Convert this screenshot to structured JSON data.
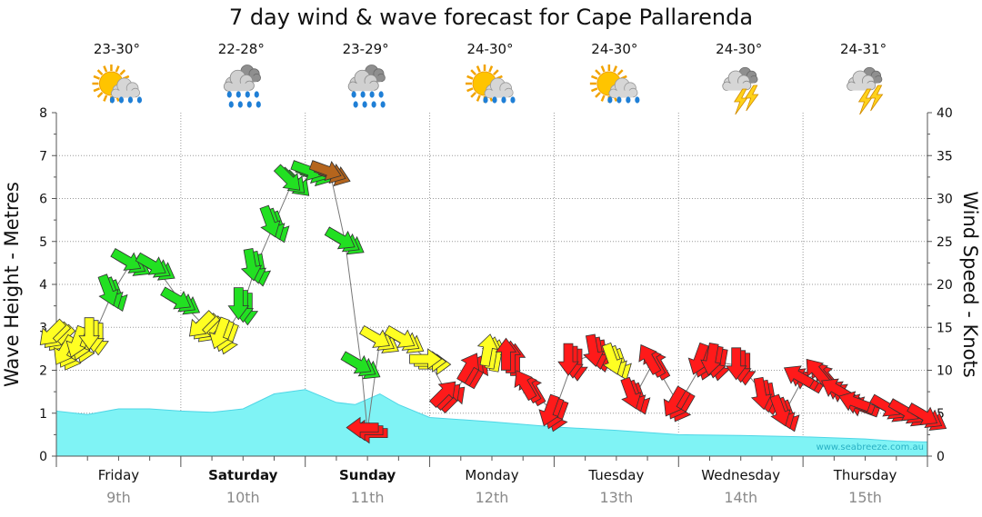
{
  "chart_data": {
    "type": "line",
    "title": "7 day wind & wave forecast for Cape Pallarenda",
    "ylabel": "Wave Height - Metres",
    "y2label": "Wind Speed - Knots",
    "ylim": [
      0,
      8
    ],
    "y2lim": [
      0,
      40
    ],
    "yticks": [
      "0",
      "1",
      "2",
      "3",
      "4",
      "5",
      "6",
      "7",
      "8"
    ],
    "y2ticks": [
      "0",
      "5",
      "10",
      "15",
      "20",
      "25",
      "30",
      "35",
      "40"
    ],
    "xlim": [
      0,
      7
    ],
    "days": [
      {
        "day": "Friday",
        "date": "9th",
        "bold": false,
        "temp": "23-30°",
        "weather": "sun-cloud-showers-icon"
      },
      {
        "day": "Saturday",
        "date": "10th",
        "bold": true,
        "temp": "22-28°",
        "weather": "cloud-rain-icon"
      },
      {
        "day": "Sunday",
        "date": "11th",
        "bold": true,
        "temp": "23-29°",
        "weather": "cloud-rain-icon"
      },
      {
        "day": "Monday",
        "date": "12th",
        "bold": false,
        "temp": "24-30°",
        "weather": "sun-cloud-showers-icon"
      },
      {
        "day": "Tuesday",
        "date": "13th",
        "bold": false,
        "temp": "24-30°",
        "weather": "sun-cloud-showers-icon"
      },
      {
        "day": "Wednesday",
        "date": "14th",
        "bold": false,
        "temp": "24-30°",
        "weather": "storm-icon"
      },
      {
        "day": "Thursday",
        "date": "15th",
        "bold": false,
        "temp": "24-31°",
        "weather": "storm-icon"
      }
    ],
    "series": [
      {
        "name": "Wave Height (m)",
        "x": [
          0,
          0.25,
          0.5,
          0.75,
          1.0,
          1.25,
          1.5,
          1.75,
          2.0,
          2.25,
          2.4,
          2.6,
          2.75,
          3.0,
          3.5,
          4.0,
          4.5,
          5.0,
          5.5,
          6.0,
          6.5,
          6.75,
          7.0
        ],
        "values": [
          1.05,
          0.97,
          1.1,
          1.1,
          1.05,
          1.02,
          1.1,
          1.45,
          1.55,
          1.25,
          1.2,
          1.45,
          1.2,
          0.9,
          0.8,
          0.68,
          0.6,
          0.5,
          0.48,
          0.45,
          0.4,
          0.35,
          0.33
        ]
      },
      {
        "name": "Wind Speed (knots)",
        "x": [
          0.0,
          0.1,
          0.2,
          0.3,
          0.45,
          0.6,
          0.8,
          1.0,
          1.2,
          1.35,
          1.5,
          1.6,
          1.75,
          1.9,
          2.05,
          2.2,
          2.32,
          2.45,
          2.5,
          2.6,
          2.8,
          3.0,
          3.15,
          3.35,
          3.5,
          3.65,
          3.8,
          4.0,
          4.15,
          4.35,
          4.5,
          4.65,
          4.8,
          5.0,
          5.2,
          5.3,
          5.5,
          5.7,
          5.85,
          6.0,
          6.15,
          6.3,
          6.45,
          6.7,
          6.85,
          7.0
        ],
        "values": [
          14,
          12,
          13,
          14,
          19,
          22.5,
          22,
          18,
          15,
          14,
          17.5,
          22,
          27,
          32,
          33,
          33,
          25,
          10.5,
          3,
          13.5,
          13.5,
          11,
          7,
          10,
          12,
          11.5,
          8,
          5,
          11,
          12,
          11,
          7,
          11,
          6,
          11,
          11,
          10.5,
          7,
          5,
          9,
          9.5,
          7.5,
          6,
          5.5,
          5,
          4.5
        ],
        "directions_deg": [
          225,
          210,
          200,
          180,
          160,
          120,
          120,
          120,
          225,
          200,
          180,
          170,
          160,
          135,
          110,
          110,
          120,
          120,
          270,
          120,
          120,
          90,
          45,
          30,
          10,
          0,
          330,
          200,
          180,
          170,
          160,
          160,
          330,
          210,
          200,
          190,
          180,
          170,
          160,
          300,
          320,
          300,
          290,
          120,
          120,
          120
        ],
        "colors": [
          "yellow",
          "yellow",
          "yellow",
          "yellow",
          "green",
          "green",
          "green",
          "green",
          "yellow",
          "yellow",
          "green",
          "green",
          "green",
          "green",
          "green",
          "brown",
          "green",
          "green",
          "red",
          "yellow",
          "yellow",
          "yellow",
          "red",
          "red",
          "yellow",
          "red",
          "red",
          "red",
          "red",
          "red",
          "yellow",
          "red",
          "red",
          "red",
          "red",
          "red",
          "red",
          "red",
          "red",
          "red",
          "red",
          "red",
          "red",
          "red",
          "red",
          "red"
        ]
      }
    ],
    "legend": "none",
    "watermark": "www.seabreeze.com.au"
  },
  "palette": {
    "wave_fill": "#7ff3f5",
    "wave_line": "#4fd6e6",
    "green": "#22e022",
    "yellow": "#ffff22",
    "red": "#ff1a1a",
    "brown": "#b5651d",
    "wind_line": "#777777"
  }
}
